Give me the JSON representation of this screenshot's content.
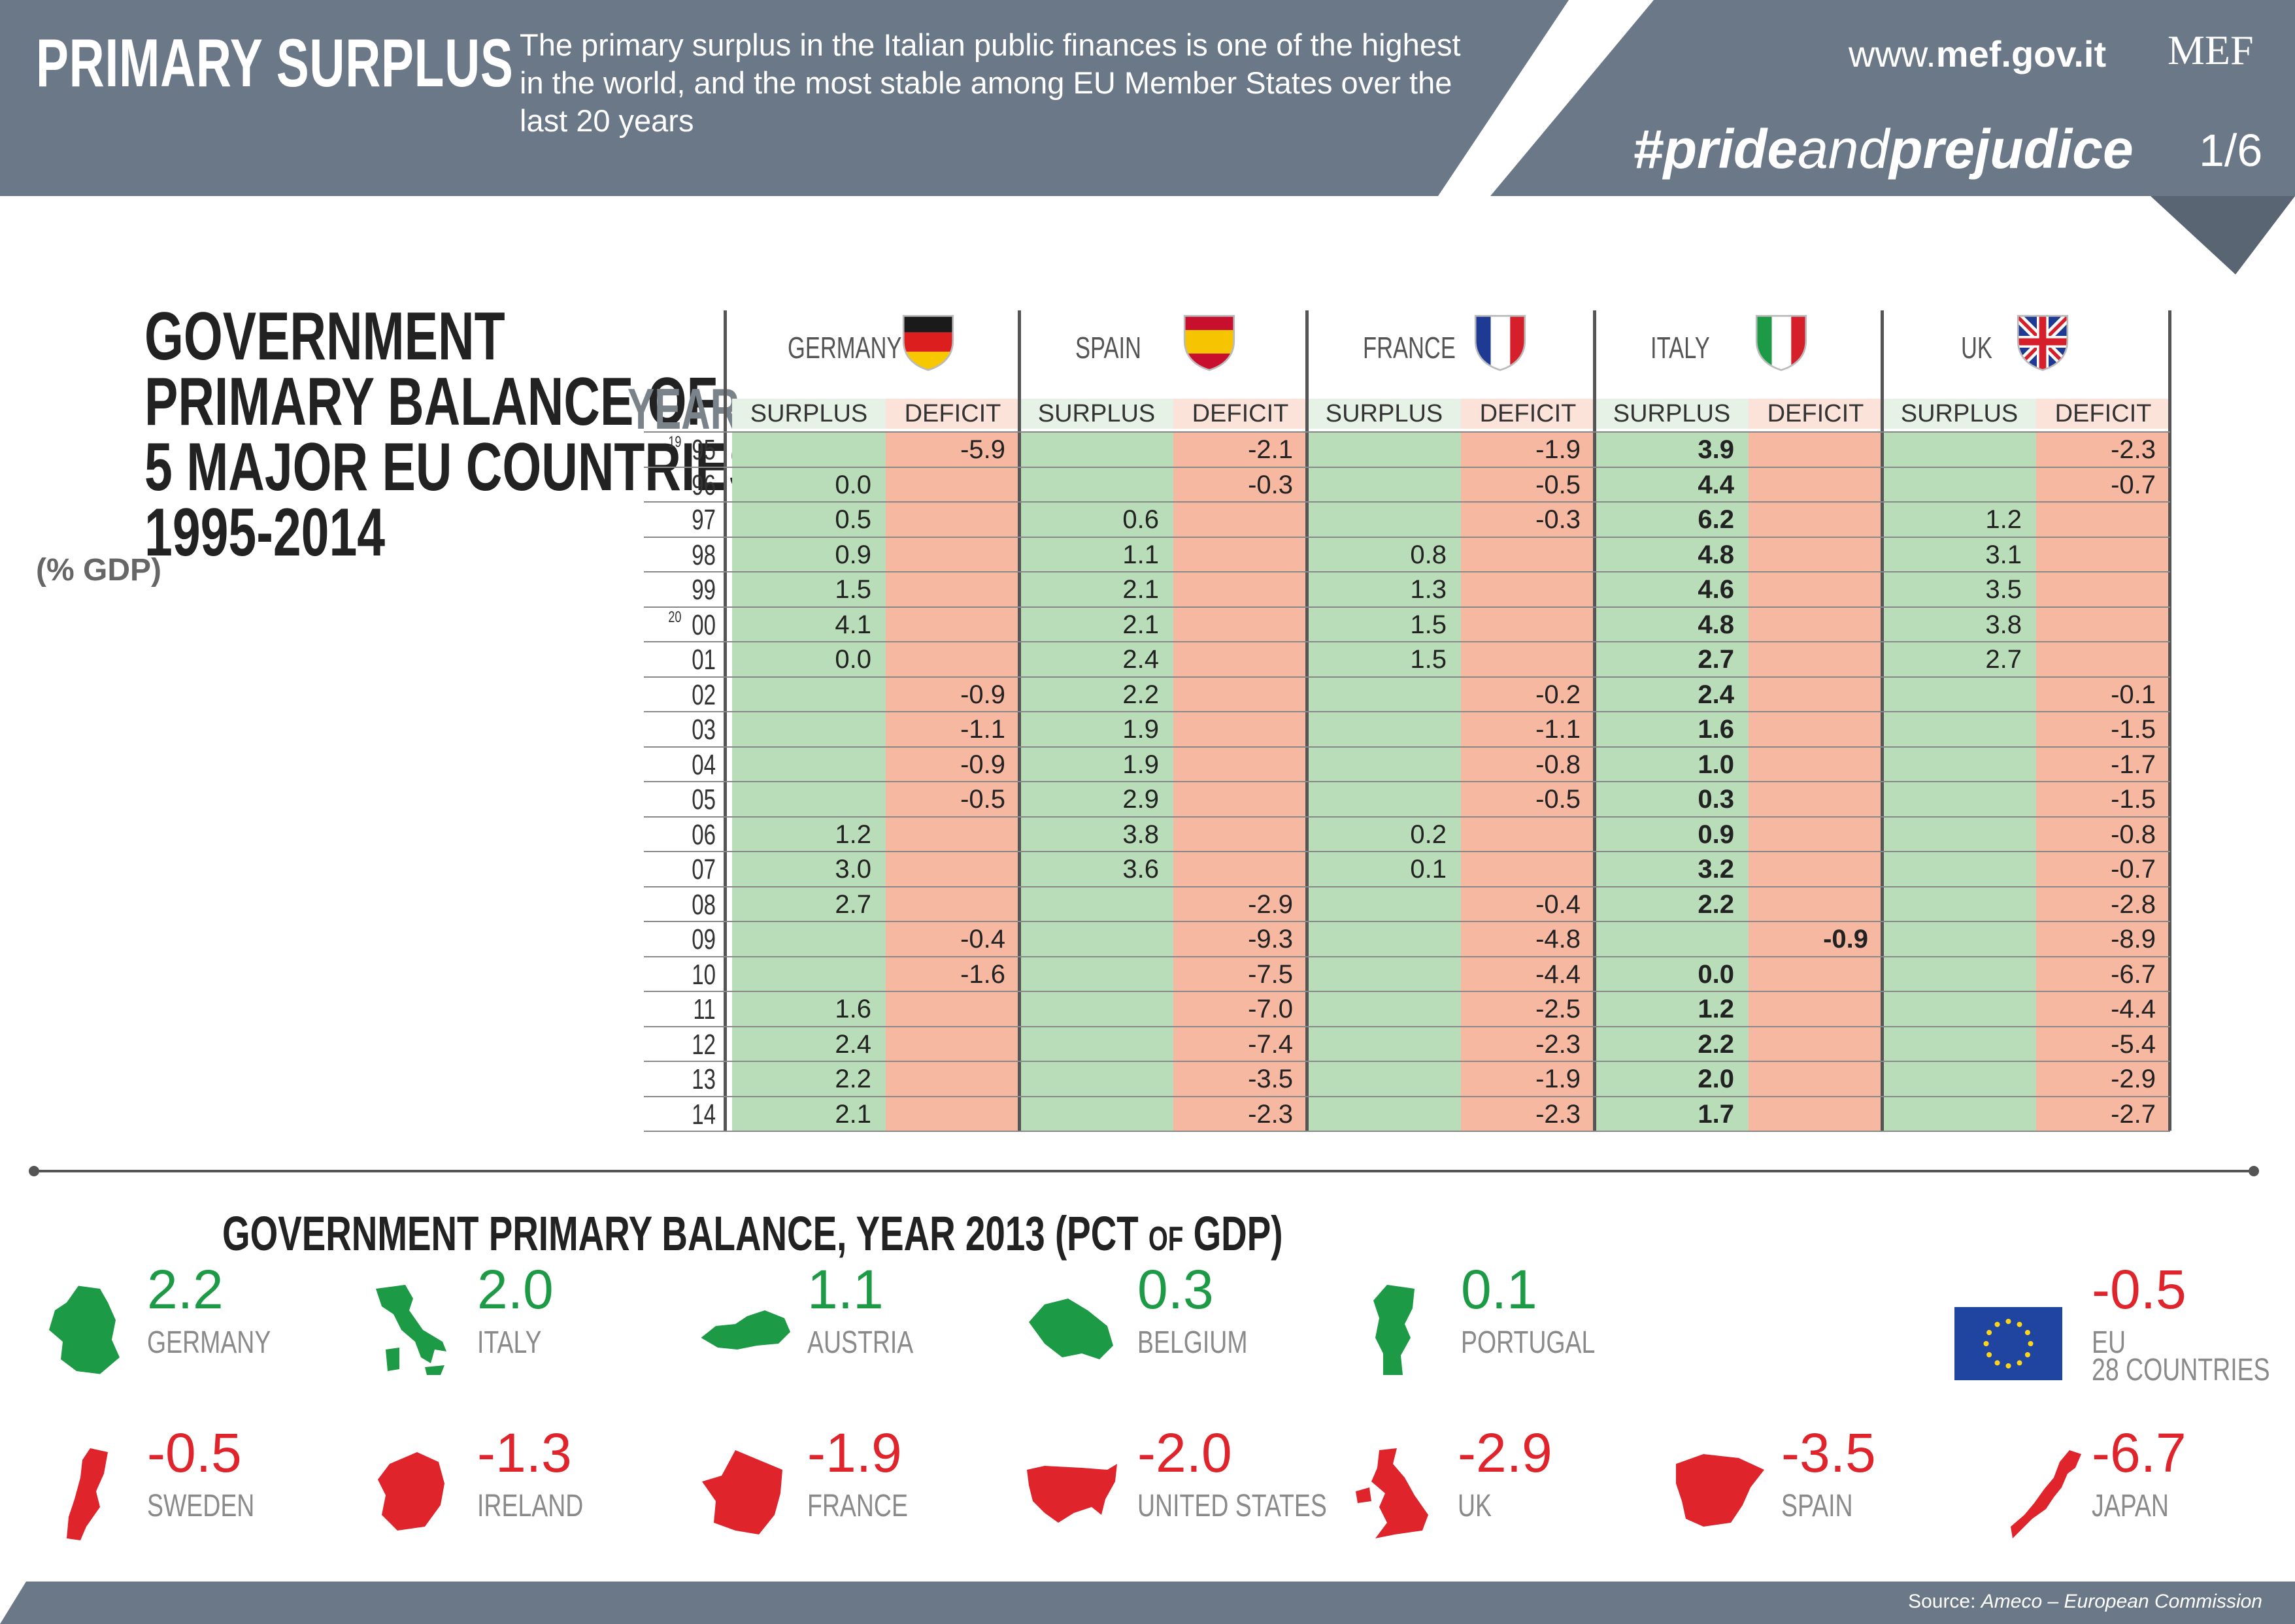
{
  "header": {
    "title": "PRIMARY SURPLUS",
    "description": "The primary surplus in the Italian public finances is one of the highest in the world, and the most stable among EU Member States over the last 20 years",
    "url_prefix": "www.",
    "url_bold": "mef.gov.it",
    "logo": "MEF",
    "hashtag_a": "#pride",
    "hashtag_b": "and",
    "hashtag_c": "prejudice",
    "page": "1/6"
  },
  "colors": {
    "header_gray": "#6b7888",
    "surplus_green": "#b8ddb8",
    "deficit_red": "#f7b8a2",
    "positive_text": "#1d9a45",
    "negative_text": "#e0242c"
  },
  "table_section": {
    "title_lines": [
      "GOVERNMENT",
      "PRIMARY BALANCE OF",
      "5 MAJOR EU COUNTRIES",
      "1995-2014"
    ],
    "unit": "(% GDP)",
    "year_header": "YEAR",
    "surplus_label": "SURPLUS",
    "deficit_label": "DEFICIT",
    "countries": [
      "GERMANY",
      "SPAIN",
      "FRANCE",
      "ITALY",
      "UK"
    ],
    "flag_icons": [
      "germany-flag-icon",
      "spain-flag-icon",
      "france-flag-icon",
      "italy-flag-icon",
      "uk-flag-icon"
    ],
    "century_19": "19",
    "century_20": "20",
    "years": [
      "95",
      "96",
      "97",
      "98",
      "99",
      "00",
      "01",
      "02",
      "03",
      "04",
      "05",
      "06",
      "07",
      "08",
      "09",
      "10",
      "11",
      "12",
      "13",
      "14"
    ]
  },
  "chart_data": {
    "type": "table",
    "title": "GOVERNMENT PRIMARY BALANCE OF 5 MAJOR EU COUNTRIES 1995-2014",
    "unit": "(% GDP)",
    "columns": [
      "YEAR",
      "GERMANY",
      "SPAIN",
      "FRANCE",
      "ITALY",
      "UK"
    ],
    "rows": [
      [
        "1995",
        "-5.9",
        "-2.1",
        "-1.9",
        "3.9",
        "-2.3"
      ],
      [
        "96",
        "0.0",
        "-0.3",
        "-0.5",
        "4.4",
        "-0.7"
      ],
      [
        "97",
        "0.5",
        "0.6",
        "-0.3",
        "6.2",
        "1.2"
      ],
      [
        "98",
        "0.9",
        "1.1",
        "0.8",
        "4.8",
        "3.1"
      ],
      [
        "99",
        "1.5",
        "2.1",
        "1.3",
        "4.6",
        "3.5"
      ],
      [
        "2000",
        "4.1",
        "2.1",
        "1.5",
        "4.8",
        "3.8"
      ],
      [
        "01",
        "0.0",
        "2.4",
        "1.5",
        "2.7",
        "2.7"
      ],
      [
        "02",
        "-0.9",
        "2.2",
        "-0.2",
        "2.4",
        "-0.1"
      ],
      [
        "03",
        "-1.1",
        "1.9",
        "-1.1",
        "1.6",
        "-1.5"
      ],
      [
        "04",
        "-0.9",
        "1.9",
        "-0.8",
        "1.0",
        "-1.7"
      ],
      [
        "05",
        "-0.5",
        "2.9",
        "-0.5",
        "0.3",
        "-1.5"
      ],
      [
        "06",
        "1.2",
        "3.8",
        "0.2",
        "0.9",
        "-0.8"
      ],
      [
        "07",
        "3.0",
        "3.6",
        "0.1",
        "3.2",
        "-0.7"
      ],
      [
        "08",
        "2.7",
        "-2.9",
        "-0.4",
        "2.2",
        "-2.8"
      ],
      [
        "09",
        "-0.4",
        "-9.3",
        "-4.8",
        "-0.9",
        "-8.9"
      ],
      [
        "10",
        "-1.6",
        "-7.5",
        "-4.4",
        "0.0",
        "-6.7"
      ],
      [
        "11",
        "1.6",
        "-7.0",
        "-2.5",
        "1.2",
        "-4.4"
      ],
      [
        "12",
        "2.4",
        "-7.4",
        "-2.3",
        "2.2",
        "-5.4"
      ],
      [
        "13",
        "2.2",
        "-3.5",
        "-1.9",
        "2.0",
        "-2.9"
      ],
      [
        "14",
        "2.1",
        "-2.3",
        "-2.3",
        "1.7",
        "-2.7"
      ]
    ],
    "bold_column": "ITALY"
  },
  "balance_2013": {
    "title_a": "GOVERNMENT PRIMARY BALANCE, YEAR 2013 (PCT ",
    "title_of": "OF",
    "title_b": " GDP)",
    "items": [
      {
        "value": "2.2",
        "name": "GERMANY",
        "icon": "germany-map-icon"
      },
      {
        "value": "2.0",
        "name": "ITALY",
        "icon": "italy-map-icon"
      },
      {
        "value": "1.1",
        "name": "AUSTRIA",
        "icon": "austria-map-icon"
      },
      {
        "value": "0.3",
        "name": "BELGIUM",
        "icon": "belgium-map-icon"
      },
      {
        "value": "0.1",
        "name": "PORTUGAL",
        "icon": "portugal-map-icon"
      },
      {
        "value": "-0.5",
        "name": "EU",
        "name2": "28 COUNTRIES",
        "icon": "eu-flag-icon"
      },
      {
        "value": "-0.5",
        "name": "SWEDEN",
        "icon": "sweden-map-icon"
      },
      {
        "value": "-1.3",
        "name": "IRELAND",
        "icon": "ireland-map-icon"
      },
      {
        "value": "-1.9",
        "name": "FRANCE",
        "icon": "france-map-icon"
      },
      {
        "value": "-2.0",
        "name": "UNITED STATES",
        "icon": "usa-map-icon"
      },
      {
        "value": "-2.9",
        "name": "UK",
        "icon": "uk-map-icon"
      },
      {
        "value": "-3.5",
        "name": "SPAIN",
        "icon": "spain-map-icon"
      },
      {
        "value": "-6.7",
        "name": "JAPAN",
        "icon": "japan-map-icon"
      }
    ]
  },
  "footer": {
    "source_prefix": "Source: ",
    "source_italic": "Ameco – European Commission"
  }
}
